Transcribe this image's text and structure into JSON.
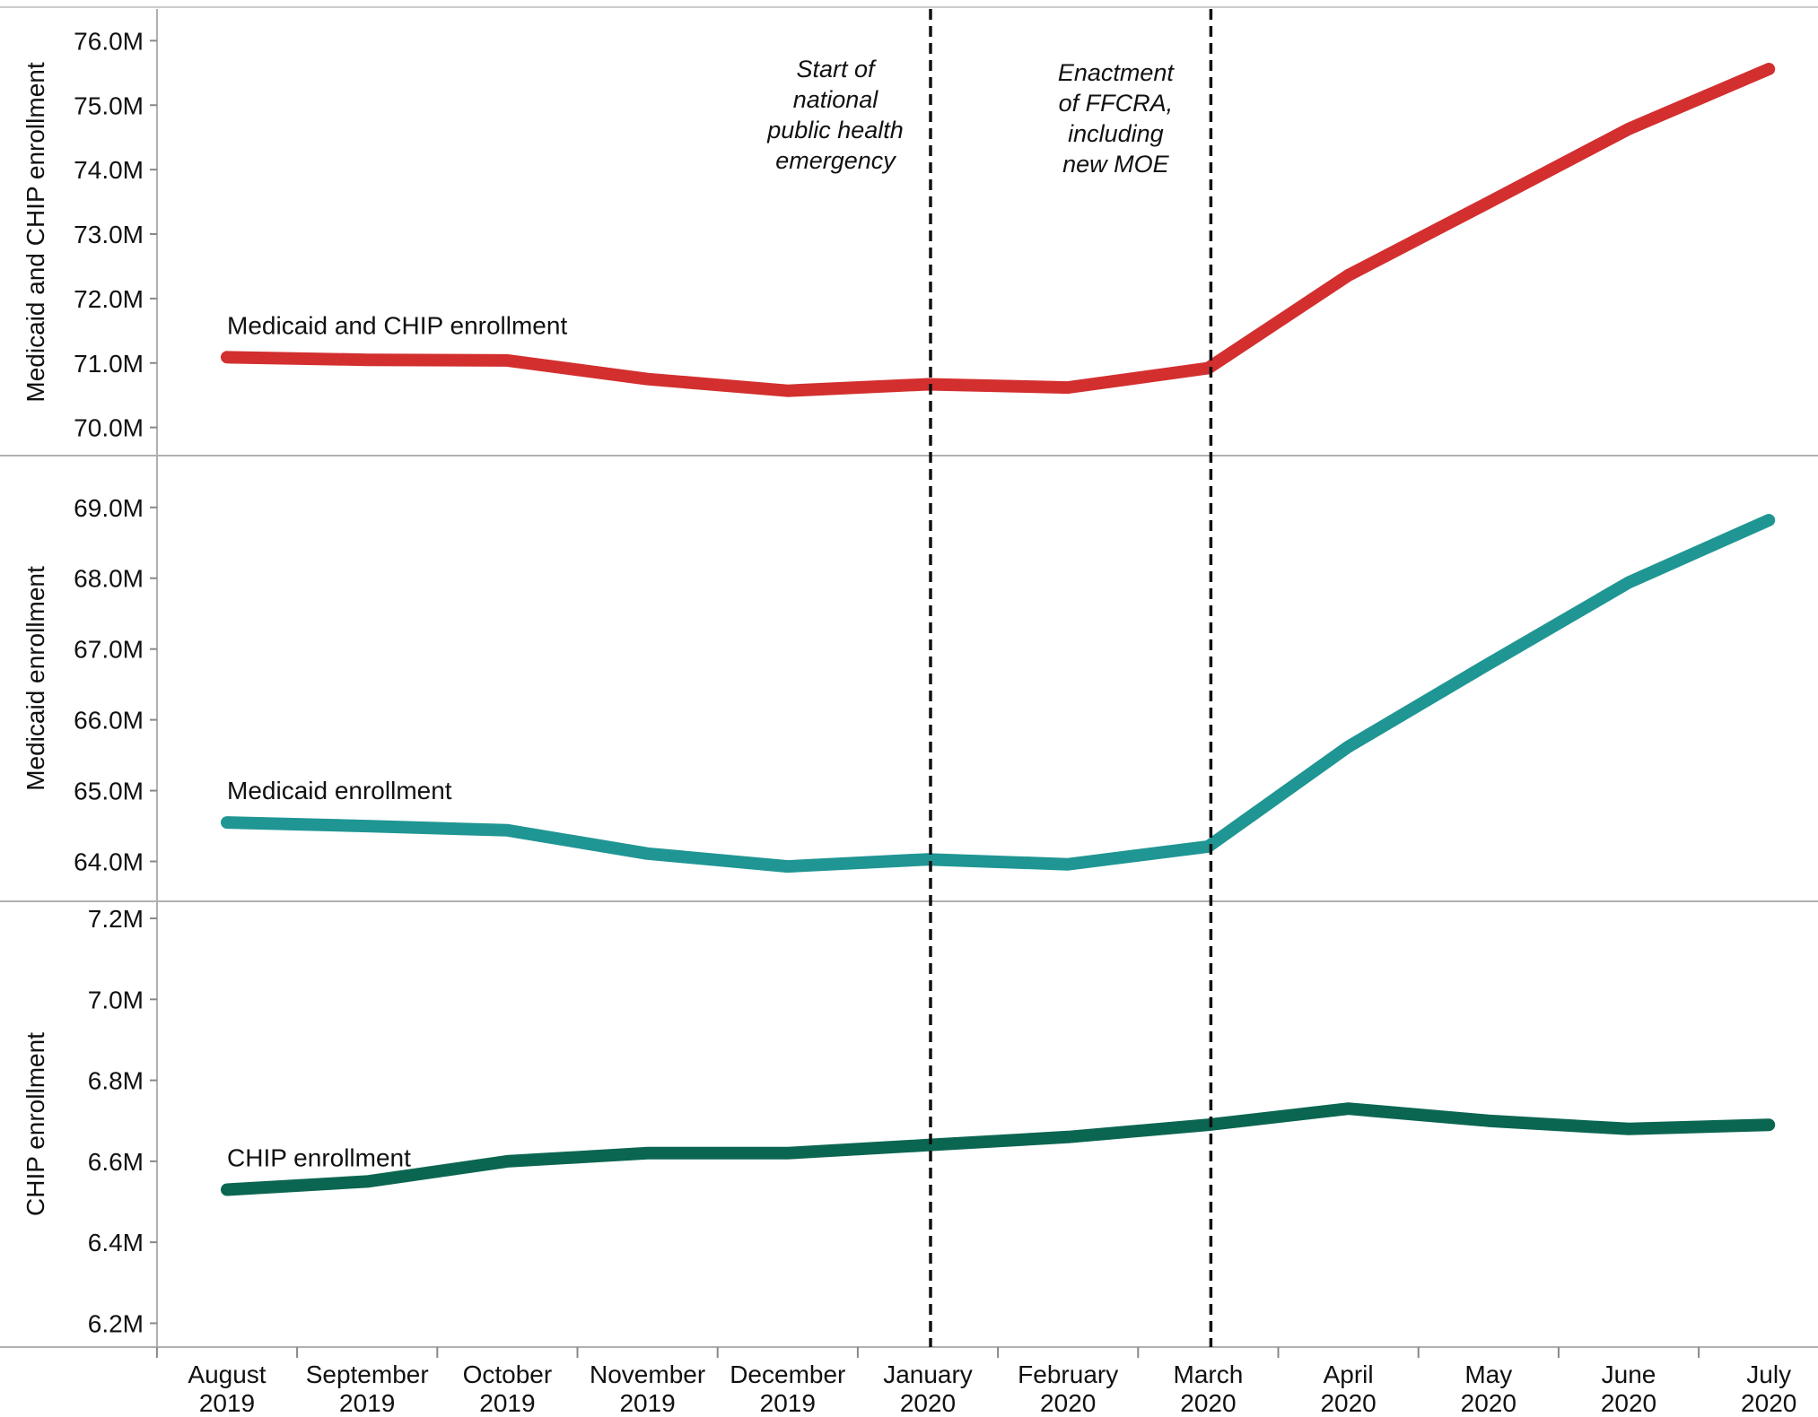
{
  "chart_data": {
    "type": "line",
    "x_categories": [
      [
        "August",
        "2019"
      ],
      [
        "September",
        "2019"
      ],
      [
        "October",
        "2019"
      ],
      [
        "November",
        "2019"
      ],
      [
        "December",
        "2019"
      ],
      [
        "January",
        "2020"
      ],
      [
        "February",
        "2020"
      ],
      [
        "March",
        "2020"
      ],
      [
        "April",
        "2020"
      ],
      [
        "May",
        "2020"
      ],
      [
        "June",
        "2020"
      ],
      [
        "July",
        "2020"
      ]
    ],
    "panels": [
      {
        "id": "total",
        "ylabel": "Medicaid and CHIP enrollment",
        "ylim": [
          69.8,
          76.2
        ],
        "ticks": [
          70.0,
          71.0,
          72.0,
          73.0,
          74.0,
          75.0,
          76.0
        ],
        "tick_labels": [
          "70.0M",
          "71.0M",
          "72.0M",
          "73.0M",
          "74.0M",
          "75.0M",
          "76.0M"
        ],
        "series": [
          {
            "name": "Medicaid and CHIP enrollment",
            "color": "#d32f2f",
            "values": [
              71.09,
              71.05,
              71.04,
              70.75,
              70.57,
              70.67,
              70.62,
              70.92,
              72.36,
              73.49,
              74.63,
              75.56
            ]
          }
        ]
      },
      {
        "id": "medicaid",
        "ylabel": "Medicaid enrollment",
        "ylim": [
          63.5,
          69.2
        ],
        "ticks": [
          64.0,
          65.0,
          66.0,
          67.0,
          68.0,
          69.0
        ],
        "tick_labels": [
          "64.0M",
          "65.0M",
          "66.0M",
          "67.0M",
          "68.0M",
          "69.0M"
        ],
        "series": [
          {
            "name": "Medicaid enrollment",
            "color": "#1f9693",
            "values": [
              64.55,
              64.5,
              64.44,
              64.11,
              63.93,
              64.03,
              63.96,
              64.21,
              65.62,
              66.79,
              67.94,
              68.82
            ]
          }
        ]
      },
      {
        "id": "chip",
        "ylabel": "CHIP enrollment",
        "ylim": [
          6.15,
          7.22
        ],
        "ticks": [
          6.2,
          6.4,
          6.6,
          6.8,
          7.0,
          7.2
        ],
        "tick_labels": [
          "6.2M",
          "6.4M",
          "6.6M",
          "6.8M",
          "7.0M",
          "7.2M"
        ],
        "series": [
          {
            "name": "CHIP enrollment",
            "color": "#0b6651",
            "values": [
              6.53,
              6.55,
              6.6,
              6.62,
              6.62,
              6.64,
              6.66,
              6.69,
              6.73,
              6.7,
              6.68,
              6.69
            ]
          }
        ]
      }
    ],
    "annotations": [
      {
        "x_index": 5,
        "lines": [
          "Start of",
          "national",
          "public health",
          "emergency"
        ]
      },
      {
        "x_index": 7,
        "lines": [
          "Enactment",
          "of FFCRA,",
          "including",
          "new MOE"
        ]
      }
    ]
  }
}
